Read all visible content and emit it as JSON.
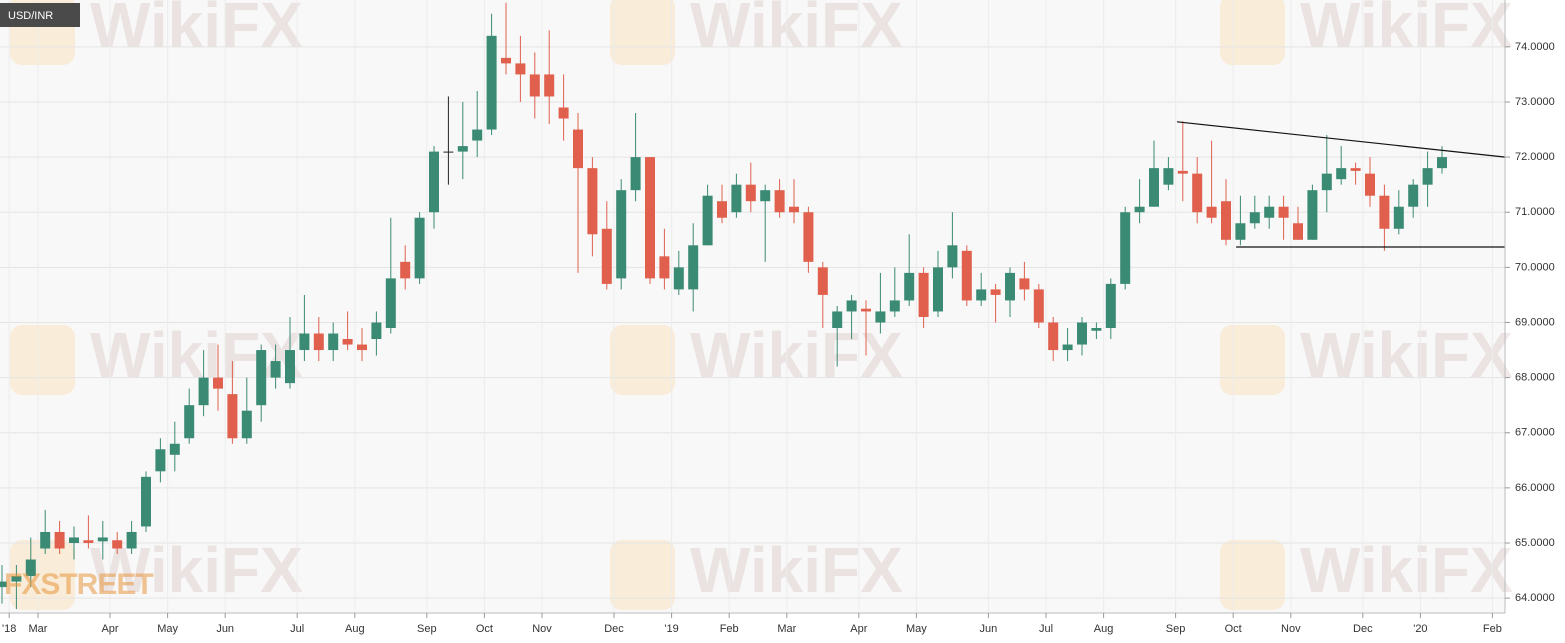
{
  "chart_data": {
    "type": "candlestick",
    "watermark": "WikiFX",
    "logo": "FXSTREET",
    "categories": [
      null,
      "'18",
      null,
      "Mar",
      null,
      null,
      null,
      null,
      "Apr",
      null,
      null,
      null,
      "May",
      null,
      null,
      null,
      "Jun",
      null,
      null,
      null,
      null,
      "Jul",
      null,
      null,
      null,
      "Aug",
      null,
      null,
      null,
      null,
      "Sep",
      null,
      null,
      null,
      "Oct",
      null,
      null,
      null,
      "Nov",
      null,
      null,
      null,
      null,
      "Dec",
      null,
      null,
      null,
      "'19",
      null,
      null,
      null,
      "Feb",
      null,
      null,
      null,
      "Mar",
      null,
      null,
      null,
      null,
      "Apr",
      null,
      null,
      null,
      "May",
      null,
      null,
      null,
      null,
      "Jun",
      null,
      null,
      null,
      "Jul",
      null,
      null,
      null,
      "Aug",
      null,
      null,
      null,
      null,
      "Sep",
      null,
      null,
      null,
      "Oct",
      null,
      null,
      null,
      "Nov",
      null,
      null,
      null,
      null,
      "Dec",
      null,
      null,
      null,
      "'20",
      null,
      null,
      null,
      null,
      "Feb"
    ],
    "series": [
      {
        "name": "USD/INR",
        "up_color": "#3a8a74",
        "down_color": "#e0604d",
        "doji_color": "#222222",
        "open": [
          64.2,
          64.3,
          64.4,
          64.9,
          65.2,
          65.0,
          65.05,
          65.03,
          65.05,
          64.9,
          65.3,
          66.3,
          66.6,
          66.9,
          67.5,
          68.0,
          67.7,
          66.9,
          67.5,
          68.0,
          67.9,
          68.5,
          68.8,
          68.5,
          68.7,
          68.6,
          68.7,
          68.9,
          70.1,
          69.8,
          71.0,
          72.1,
          72.1,
          72.3,
          72.5,
          73.8,
          73.7,
          73.5,
          73.5,
          72.9,
          72.5,
          71.8,
          70.7,
          69.8,
          71.4,
          72.0,
          70.2,
          69.6,
          69.6,
          70.4,
          71.2,
          71.0,
          71.5,
          71.2,
          71.4,
          71.1,
          71.0,
          70.0,
          68.9,
          69.2,
          69.25,
          69.0,
          69.2,
          69.4,
          69.9,
          69.2,
          70.0,
          70.3,
          69.4,
          69.6,
          69.4,
          69.8,
          69.6,
          69.0,
          68.5,
          68.6,
          68.85,
          68.9,
          69.7,
          71.0,
          71.1,
          71.5,
          71.75,
          71.7,
          71.1,
          71.2,
          70.5,
          70.8,
          70.9,
          71.1,
          70.8,
          70.5,
          71.4,
          71.6,
          71.8,
          71.7,
          71.3,
          70.7,
          71.1,
          71.5,
          71.8,
          null,
          null,
          null,
          null
        ],
        "high": [
          64.6,
          64.6,
          65.1,
          65.6,
          65.4,
          65.3,
          65.5,
          65.4,
          65.2,
          65.4,
          66.3,
          66.9,
          67.2,
          67.8,
          68.5,
          68.6,
          68.3,
          68.0,
          68.6,
          68.6,
          69.1,
          69.5,
          69.1,
          69.0,
          69.2,
          68.9,
          69.2,
          70.9,
          70.4,
          71.0,
          72.2,
          73.1,
          73.0,
          73.2,
          74.6,
          74.8,
          74.2,
          73.9,
          74.3,
          73.5,
          72.8,
          72.0,
          71.2,
          71.6,
          72.8,
          72.0,
          70.7,
          70.3,
          70.8,
          71.5,
          71.5,
          71.7,
          71.9,
          71.5,
          71.6,
          71.6,
          71.1,
          70.1,
          69.3,
          69.5,
          69.4,
          69.9,
          70.0,
          70.6,
          70.0,
          70.3,
          71.0,
          70.4,
          69.9,
          69.7,
          70.0,
          70.1,
          69.7,
          69.1,
          68.9,
          69.1,
          69.0,
          69.8,
          71.1,
          71.6,
          72.3,
          72.0,
          72.65,
          72.0,
          72.3,
          71.6,
          71.3,
          71.3,
          71.3,
          71.3,
          71.1,
          71.5,
          72.4,
          72.2,
          71.9,
          72.0,
          71.5,
          71.4,
          71.6,
          72.1,
          72.2,
          null,
          null,
          null,
          null
        ],
        "low": [
          63.9,
          63.8,
          64.2,
          64.8,
          64.8,
          64.7,
          64.9,
          64.7,
          64.8,
          64.8,
          65.2,
          66.1,
          66.3,
          66.8,
          67.3,
          67.4,
          66.8,
          66.8,
          67.2,
          67.8,
          67.8,
          68.3,
          68.3,
          68.3,
          68.5,
          68.3,
          68.4,
          68.8,
          69.6,
          69.7,
          70.7,
          71.5,
          71.6,
          72.0,
          72.4,
          73.5,
          73.0,
          72.7,
          72.6,
          72.3,
          69.9,
          70.2,
          69.6,
          69.6,
          71.2,
          69.7,
          69.6,
          69.5,
          69.2,
          70.4,
          70.8,
          70.9,
          71.0,
          70.1,
          70.9,
          70.8,
          69.9,
          68.9,
          68.2,
          68.7,
          68.4,
          68.8,
          69.1,
          69.3,
          68.9,
          69.1,
          69.8,
          69.3,
          69.3,
          69.0,
          69.1,
          69.4,
          68.9,
          68.3,
          68.3,
          68.4,
          68.7,
          68.7,
          69.6,
          70.8,
          71.1,
          71.4,
          71.2,
          70.8,
          70.8,
          70.4,
          70.4,
          70.7,
          70.7,
          70.5,
          70.5,
          70.5,
          71.0,
          71.5,
          71.5,
          71.1,
          70.3,
          70.6,
          70.9,
          71.1,
          71.7,
          null,
          null,
          null,
          null
        ],
        "close": [
          64.3,
          64.4,
          64.7,
          65.2,
          64.9,
          65.1,
          65.0,
          65.1,
          64.9,
          65.2,
          66.2,
          66.7,
          66.8,
          67.5,
          68.0,
          67.8,
          66.9,
          67.4,
          68.5,
          68.3,
          68.5,
          68.8,
          68.5,
          68.8,
          68.6,
          68.5,
          69.0,
          69.8,
          69.8,
          70.9,
          72.1,
          72.1,
          72.2,
          72.5,
          74.2,
          73.7,
          73.5,
          73.1,
          73.1,
          72.7,
          71.8,
          70.6,
          69.7,
          71.4,
          72.0,
          69.8,
          69.8,
          70.0,
          70.4,
          71.3,
          70.9,
          71.5,
          71.2,
          71.4,
          71.0,
          71.0,
          70.1,
          69.5,
          69.2,
          69.4,
          69.2,
          69.2,
          69.4,
          69.9,
          69.1,
          70.0,
          70.4,
          69.4,
          69.6,
          69.5,
          69.9,
          69.6,
          69.0,
          68.5,
          68.6,
          69.0,
          68.9,
          69.7,
          71.0,
          71.1,
          71.8,
          71.8,
          71.7,
          71.0,
          70.9,
          70.5,
          70.8,
          71.0,
          71.1,
          70.9,
          70.5,
          71.4,
          71.7,
          71.8,
          71.75,
          71.3,
          70.7,
          71.1,
          71.5,
          71.8,
          72.0,
          null,
          null,
          null,
          null
        ]
      }
    ],
    "trendlines": [
      {
        "x": [
          81.6,
          104.4
        ],
        "y": [
          72.64,
          72.0
        ],
        "color": "#111111"
      },
      {
        "x": [
          85.7,
          104.4
        ],
        "y": [
          70.37,
          70.37
        ],
        "color": "#111111"
      }
    ],
    "ylim": [
      63.73,
      74.85
    ],
    "yticks": [
      {
        "value": 64,
        "label": "64.0000"
      },
      {
        "value": 65,
        "label": "65.0000"
      },
      {
        "value": 66,
        "label": "66.0000"
      },
      {
        "value": 67,
        "label": "67.0000"
      },
      {
        "value": 68,
        "label": "68.0000"
      },
      {
        "value": 69,
        "label": "69.0000"
      },
      {
        "value": 70,
        "label": "70.0000"
      },
      {
        "value": 71,
        "label": "71.0000"
      },
      {
        "value": 72,
        "label": "72.0000"
      },
      {
        "value": 73,
        "label": "73.0000"
      },
      {
        "value": 74,
        "label": "74.0000"
      }
    ],
    "grid": true
  }
}
